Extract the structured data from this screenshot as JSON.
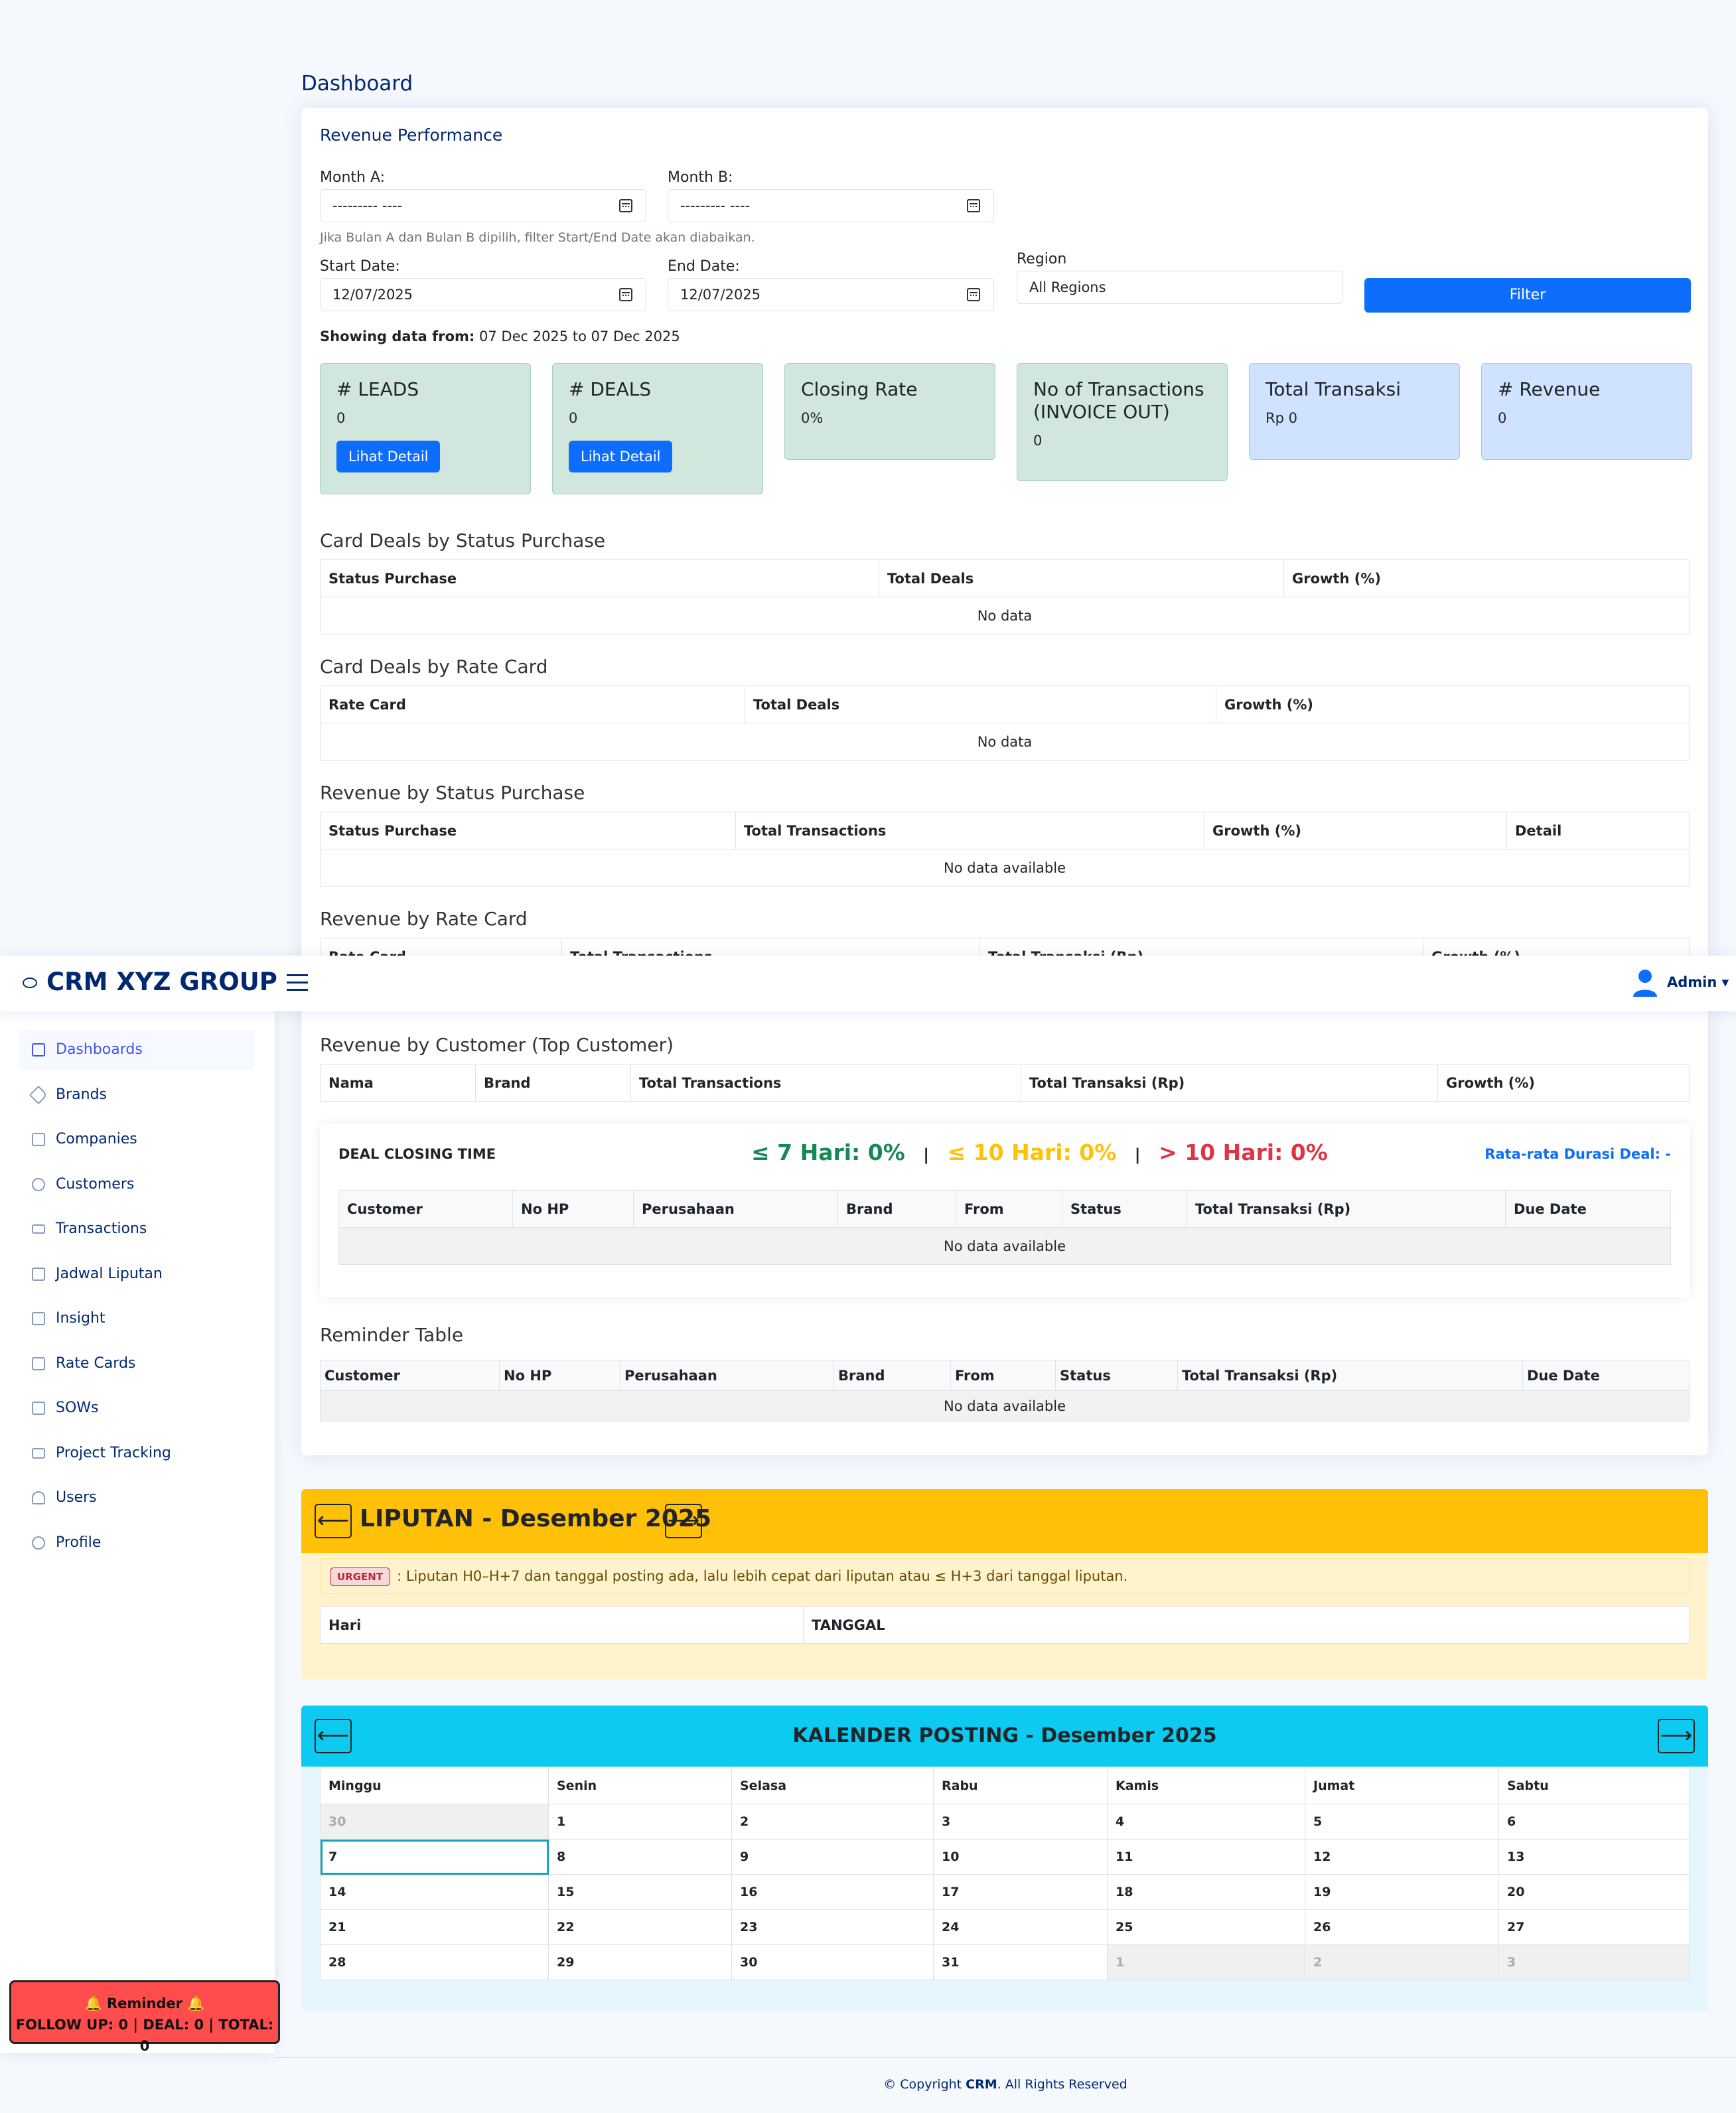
{
  "page_title": "Dashboard",
  "app": {
    "name": "CRM XYZ GROUP",
    "user": "Admin ▾"
  },
  "revenue": {
    "title": "Revenue Performance",
    "month_a_label": "Month A:",
    "month_a_value": "--------- ----",
    "month_b_label": "Month B:",
    "month_b_value": "--------- ----",
    "hint": "Jika Bulan A dan Bulan B dipilih, filter Start/End Date akan diabaikan.",
    "start_label": "Start Date:",
    "start_value": "12/07/2025",
    "end_label": "End Date:",
    "end_value": "12/07/2025",
    "region_label": "Region",
    "region_value": "All Regions",
    "filter_label": "Filter",
    "showing_prefix": "Showing data from:",
    "showing_range": " 07 Dec 2025 to 07 Dec 2025"
  },
  "stats": [
    {
      "title": "# LEADS",
      "value": "0",
      "button": "Lihat Detail"
    },
    {
      "title": "# DEALS",
      "value": "0",
      "button": "Lihat Detail"
    },
    {
      "title": "Closing Rate",
      "value": "0%"
    },
    {
      "title": "No of Transactions (INVOICE OUT)",
      "value": "0"
    },
    {
      "title": "Total Transaksi",
      "value": "Rp 0"
    },
    {
      "title": "# Revenue",
      "value": "0"
    }
  ],
  "sections": {
    "deals_status": {
      "title": "Card Deals by Status Purchase",
      "cols": [
        "Status Purchase",
        "Total Deals",
        "Growth (%)"
      ],
      "empty": "No data"
    },
    "deals_rate": {
      "title": "Card Deals by Rate Card",
      "cols": [
        "Rate Card",
        "Total Deals",
        "Growth (%)"
      ],
      "empty": "No data"
    },
    "rev_status": {
      "title": "Revenue by Status Purchase",
      "cols": [
        "Status Purchase",
        "Total Transactions",
        "Growth (%)",
        "Detail"
      ],
      "empty": "No data available"
    },
    "rev_rate": {
      "title": "Revenue by Rate Card",
      "cols": [
        "Rate Card",
        "Total Transactions",
        "Total Transaksi (Rp)",
        "Growth (%)"
      ]
    },
    "rev_customer": {
      "title": "Revenue by Customer (Top Customer)",
      "cols": [
        "Nama",
        "Brand",
        "Total Transactions",
        "Total Transaksi (Rp)",
        "Growth (%)"
      ]
    }
  },
  "deal_closing": {
    "title": "DEAL CLOSING TIME",
    "le7": "≤ 7 Hari: 0%",
    "le10": "≤ 10 Hari: 0%",
    "gt10": "> 10 Hari: 0%",
    "sep": "|",
    "avg": "Rata-rata Durasi Deal: -",
    "cols": [
      "Customer",
      "No HP",
      "Perusahaan",
      "Brand",
      "From",
      "Status",
      "Total Transaksi (Rp)",
      "Due Date"
    ],
    "empty": "No data available"
  },
  "reminder_table": {
    "title": "Reminder Table",
    "cols": [
      "Customer",
      "No HP",
      "Perusahaan",
      "Brand",
      "From",
      "Status",
      "Total Transaksi (Rp)",
      "Due Date"
    ],
    "empty": "No data available"
  },
  "sidebar": {
    "items": [
      {
        "label": "Dashboards",
        "icon": "grid-icon"
      },
      {
        "label": "Brands",
        "icon": "tag-icon"
      },
      {
        "label": "Companies",
        "icon": "building-icon"
      },
      {
        "label": "Customers",
        "icon": "person-icon"
      },
      {
        "label": "Transactions",
        "icon": "cash-icon"
      },
      {
        "label": "Jadwal Liputan",
        "icon": "calendar-icon"
      },
      {
        "label": "Insight",
        "icon": "calendar-check-icon"
      },
      {
        "label": "Rate Cards",
        "icon": "list-icon"
      },
      {
        "label": "SOWs",
        "icon": "document-icon"
      },
      {
        "label": "Project Tracking",
        "icon": "folder-icon"
      },
      {
        "label": "Users",
        "icon": "people-icon"
      },
      {
        "label": "Profile",
        "icon": "profile-icon"
      }
    ]
  },
  "reminder": {
    "title": "🔔 Reminder 🔔",
    "text": "FOLLOW UP: 0 | DEAL: 0 | TOTAL: 0"
  },
  "liputan": {
    "prev": "⟵",
    "next": "⟶",
    "title": "LIPUTAN - Desember 2025",
    "badge": "URGENT",
    "urgent_text": ": Liputan H0–H+7 dan tanggal posting ada, lalu lebih cepat dari liputan atau ≤ H+3 dari tanggal liputan.",
    "cols": [
      "Hari",
      "TANGGAL"
    ]
  },
  "kalender": {
    "prev": "⟵",
    "next": "⟶",
    "title": "KALENDER POSTING - Desember 2025",
    "days": [
      "Minggu",
      "Senin",
      "Selasa",
      "Rabu",
      "Kamis",
      "Jumat",
      "Sabtu"
    ],
    "weeks": [
      [
        "30",
        "1",
        "2",
        "3",
        "4",
        "5",
        "6"
      ],
      [
        "7",
        "8",
        "9",
        "10",
        "11",
        "12",
        "13"
      ],
      [
        "14",
        "15",
        "16",
        "17",
        "18",
        "19",
        "20"
      ],
      [
        "21",
        "22",
        "23",
        "24",
        "25",
        "26",
        "27"
      ],
      [
        "28",
        "29",
        "30",
        "31",
        "1",
        "2",
        "3"
      ]
    ]
  },
  "footer": {
    "prefix": "© Copyright ",
    "brand": "CRM",
    "suffix": ". All Rights Reserved"
  }
}
